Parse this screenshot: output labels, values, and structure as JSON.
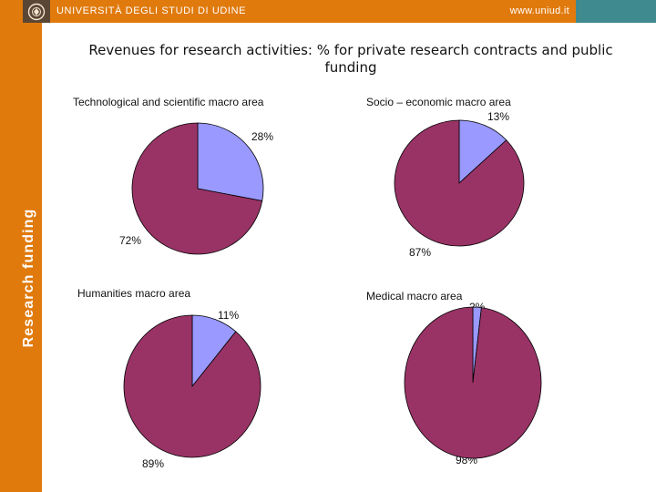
{
  "header": {
    "university": "UNIVERSITÀ DEGLI STUDI DI UDINE",
    "url": "www.uniud.it"
  },
  "sidebar": {
    "label": "Research funding"
  },
  "slide": {
    "title": "Revenues for research activities: % for private research contracts and public funding"
  },
  "colors": {
    "header_orange": "#e07a0c",
    "header_teal": "#3f8a8e",
    "logo_brown": "#5a4634",
    "slice_private": "#9999ff",
    "slice_public": "#993366"
  },
  "chart_data": [
    {
      "type": "pie",
      "title": "Technological and scientific macro area",
      "slices": [
        {
          "value": 28,
          "label": "28%",
          "color": "#9999ff"
        },
        {
          "value": 72,
          "label": "72%",
          "color": "#993366"
        }
      ]
    },
    {
      "type": "pie",
      "title": "Socio – economic macro area",
      "slices": [
        {
          "value": 13,
          "label": "13%",
          "color": "#9999ff"
        },
        {
          "value": 87,
          "label": "87%",
          "color": "#993366"
        }
      ]
    },
    {
      "type": "pie",
      "title": "Humanities macro area",
      "slices": [
        {
          "value": 11,
          "label": "11%",
          "color": "#9999ff"
        },
        {
          "value": 89,
          "label": "89%",
          "color": "#993366"
        }
      ]
    },
    {
      "type": "pie",
      "title": "Medical macro area",
      "slices": [
        {
          "value": 2,
          "label": "2%",
          "color": "#9999ff"
        },
        {
          "value": 98,
          "label": "98%",
          "color": "#993366"
        }
      ]
    }
  ]
}
